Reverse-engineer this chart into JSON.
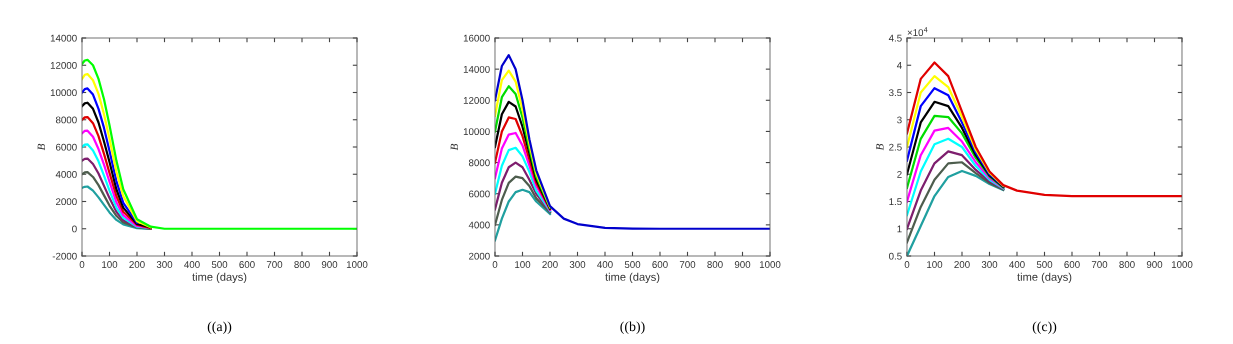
{
  "chart_data": [
    {
      "type": "line",
      "ylabel": "B",
      "xlabel": "time (days)",
      "annotations": [
        "((a))"
      ],
      "x": [
        0,
        10,
        20,
        40,
        60,
        80,
        100,
        125,
        150,
        200,
        250,
        300,
        400,
        1000
      ],
      "xlim": [
        0,
        1000
      ],
      "xticks": [
        0,
        100,
        200,
        300,
        400,
        500,
        600,
        700,
        800,
        900,
        1000
      ],
      "ylim": [
        -2000,
        14000
      ],
      "yticks": [
        -2000,
        0,
        2000,
        4000,
        6000,
        8000,
        10000,
        12000,
        14000
      ],
      "series": [
        {
          "color": "#20a0a0",
          "values": [
            3000,
            3080,
            3100,
            2800,
            2300,
            1750,
            1200,
            650,
            320,
            50,
            0,
            null,
            null,
            null
          ]
        },
        {
          "color": "#4d5d4d",
          "values": [
            4000,
            4130,
            4150,
            3800,
            3200,
            2450,
            1700,
            950,
            470,
            100,
            0,
            null,
            null,
            null
          ]
        },
        {
          "color": "#7e1e6e",
          "values": [
            5000,
            5130,
            5150,
            4750,
            4050,
            3150,
            2250,
            1250,
            620,
            150,
            50,
            null,
            null,
            null
          ]
        },
        {
          "color": "#00ffff",
          "values": [
            6000,
            6180,
            6200,
            5750,
            4950,
            3900,
            2800,
            1550,
            800,
            150,
            50,
            null,
            null,
            null
          ]
        },
        {
          "color": "#ff00ff",
          "values": [
            7000,
            7180,
            7200,
            6750,
            5850,
            4700,
            3450,
            1950,
            1000,
            200,
            50,
            null,
            null,
            null
          ]
        },
        {
          "color": "#e00000",
          "values": [
            8000,
            8180,
            8200,
            7750,
            6800,
            5500,
            4100,
            2400,
            1250,
            300,
            50,
            null,
            null,
            null
          ]
        },
        {
          "color": "#000000",
          "values": [
            9000,
            9200,
            9250,
            8800,
            7800,
            6400,
            4900,
            2900,
            1550,
            350,
            100,
            null,
            null,
            null
          ]
        },
        {
          "color": "#0000ff",
          "values": [
            10000,
            10250,
            10300,
            9850,
            8800,
            7400,
            5700,
            3500,
            1900,
            450,
            null,
            null,
            null,
            null
          ]
        },
        {
          "color": "#ffff00",
          "values": [
            11000,
            11300,
            11350,
            10900,
            9900,
            8400,
            6600,
            4200,
            2400,
            550,
            100,
            null,
            null,
            null
          ]
        },
        {
          "color": "#00ff00",
          "values": [
            12100,
            12350,
            12400,
            12000,
            11000,
            9500,
            7600,
            5000,
            2900,
            700,
            150,
            0,
            0,
            0
          ]
        }
      ]
    },
    {
      "type": "line",
      "ylabel": "B",
      "xlabel": "time (days)",
      "annotations": [
        "((b))"
      ],
      "x": [
        0,
        25,
        50,
        75,
        100,
        125,
        150,
        200,
        250,
        300,
        400,
        500,
        600,
        1000
      ],
      "xlim": [
        0,
        1000
      ],
      "xticks": [
        0,
        100,
        200,
        300,
        400,
        500,
        600,
        700,
        800,
        900,
        1000
      ],
      "ylim": [
        2000,
        16000
      ],
      "yticks": [
        2000,
        4000,
        6000,
        8000,
        10000,
        12000,
        14000,
        16000
      ],
      "series": [
        {
          "color": "#20a0a0",
          "values": [
            3000,
            4400,
            5500,
            6100,
            6250,
            6100,
            5500,
            4700,
            null,
            null,
            null,
            null,
            null,
            null
          ]
        },
        {
          "color": "#4d5d4d",
          "values": [
            4000,
            5600,
            6700,
            7100,
            7000,
            6500,
            5700,
            4800,
            null,
            null,
            null,
            null,
            null,
            null
          ]
        },
        {
          "color": "#7e1e6e",
          "values": [
            5000,
            6700,
            7700,
            8000,
            7700,
            6900,
            6000,
            4850,
            null,
            null,
            null,
            null,
            null,
            null
          ]
        },
        {
          "color": "#00ffff",
          "values": [
            6000,
            7800,
            8800,
            8950,
            8400,
            7400,
            6200,
            4900,
            null,
            null,
            null,
            null,
            null,
            null
          ]
        },
        {
          "color": "#ff00ff",
          "values": [
            7000,
            8900,
            9800,
            9900,
            9100,
            7800,
            6500,
            4950,
            null,
            null,
            null,
            null,
            null,
            null
          ]
        },
        {
          "color": "#e00000",
          "values": [
            8000,
            10000,
            10900,
            10800,
            9700,
            8200,
            6700,
            5000,
            null,
            null,
            null,
            null,
            null,
            null
          ]
        },
        {
          "color": "#000000",
          "values": [
            9000,
            11100,
            11900,
            11600,
            10300,
            8600,
            6900,
            5050,
            null,
            null,
            null,
            null,
            null,
            null
          ]
        },
        {
          "color": "#00dd00",
          "values": [
            10000,
            12200,
            12900,
            12400,
            10900,
            8900,
            7100,
            5100,
            null,
            null,
            null,
            null,
            null,
            null
          ]
        },
        {
          "color": "#ffff00",
          "values": [
            11000,
            13300,
            13900,
            13200,
            11400,
            9200,
            7300,
            5150,
            null,
            null,
            null,
            null,
            null,
            null
          ]
        },
        {
          "color": "#0000cc",
          "values": [
            12000,
            14200,
            14900,
            14000,
            12000,
            9500,
            7500,
            5200,
            4400,
            4050,
            3800,
            3760,
            3750,
            3750
          ]
        }
      ]
    },
    {
      "type": "line",
      "ylabel": "B",
      "xlabel": "time (days)",
      "annotations": [
        "×10$^{4}$",
        "((c))"
      ],
      "x": [
        0,
        50,
        100,
        150,
        200,
        250,
        300,
        350,
        400,
        500,
        600,
        700,
        1000
      ],
      "xlim": [
        0,
        1000
      ],
      "xticks": [
        0,
        100,
        200,
        300,
        400,
        500,
        600,
        700,
        800,
        900,
        1000
      ],
      "ylim": [
        0.5,
        4.5
      ],
      "yticks": [
        0.5,
        1,
        1.5,
        2,
        2.5,
        3,
        3.5,
        4,
        4.5
      ],
      "series": [
        {
          "color": "#20a0a0",
          "values": [
            0.5,
            1.05,
            1.6,
            1.95,
            2.06,
            1.97,
            1.82,
            1.71,
            null,
            null,
            null,
            null,
            null
          ]
        },
        {
          "color": "#4d5d4d",
          "values": [
            0.75,
            1.4,
            1.9,
            2.2,
            2.22,
            2.02,
            1.84,
            1.72,
            null,
            null,
            null,
            null,
            null
          ]
        },
        {
          "color": "#7e1e6e",
          "values": [
            1.0,
            1.7,
            2.2,
            2.42,
            2.35,
            2.08,
            1.87,
            1.73,
            null,
            null,
            null,
            null,
            null
          ]
        },
        {
          "color": "#00ffff",
          "values": [
            1.25,
            2.05,
            2.55,
            2.65,
            2.5,
            2.15,
            1.9,
            1.74,
            null,
            null,
            null,
            null,
            null
          ]
        },
        {
          "color": "#ff00ff",
          "values": [
            1.5,
            2.35,
            2.8,
            2.85,
            2.6,
            2.22,
            1.93,
            1.75,
            null,
            null,
            null,
            null,
            null
          ]
        },
        {
          "color": "#00dd00",
          "values": [
            1.75,
            2.65,
            3.07,
            3.05,
            2.75,
            2.3,
            1.96,
            1.76,
            null,
            null,
            null,
            null,
            null
          ]
        },
        {
          "color": "#000000",
          "values": [
            2.0,
            2.95,
            3.33,
            3.25,
            2.85,
            2.35,
            1.98,
            1.77,
            null,
            null,
            null,
            null,
            null
          ]
        },
        {
          "color": "#0000ff",
          "values": [
            2.25,
            3.25,
            3.58,
            3.45,
            2.95,
            2.4,
            2.0,
            1.78,
            null,
            null,
            null,
            null,
            null
          ]
        },
        {
          "color": "#ffff00",
          "values": [
            2.5,
            3.5,
            3.8,
            3.6,
            3.05,
            2.45,
            2.03,
            1.79,
            null,
            null,
            null,
            null,
            null
          ]
        },
        {
          "color": "#e00000",
          "values": [
            2.75,
            3.75,
            4.05,
            3.8,
            3.15,
            2.5,
            2.05,
            1.8,
            1.7,
            1.62,
            1.6,
            1.6,
            1.6
          ]
        }
      ]
    }
  ]
}
